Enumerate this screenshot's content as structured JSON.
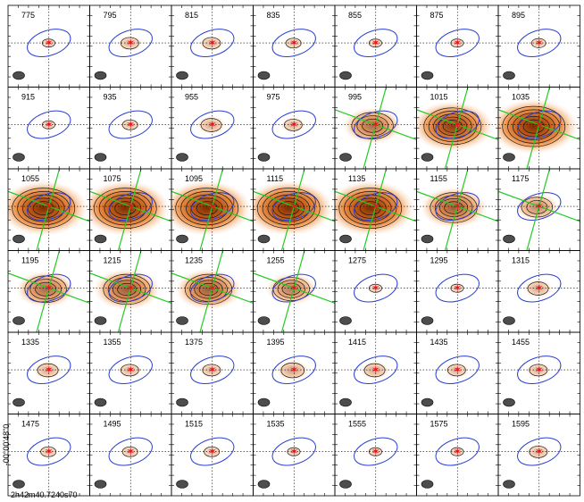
{
  "chart_data": {
    "type": "channel-map",
    "rows": 6,
    "cols": 7,
    "velocities": [
      "775",
      "795",
      "815",
      "835",
      "855",
      "875",
      "895",
      "915",
      "935",
      "955",
      "975",
      "995",
      "1015",
      "1035",
      "1055",
      "1075",
      "1095",
      "1115",
      "1135",
      "1155",
      "1175",
      "1195",
      "1215",
      "1235",
      "1255",
      "1275",
      "1295",
      "1315",
      "1335",
      "1355",
      "1375",
      "1395",
      "1415",
      "1435",
      "1455",
      "1475",
      "1495",
      "1515",
      "1535",
      "1555",
      "1575",
      "1595"
    ],
    "emission_strength": [
      0.05,
      0.15,
      0.15,
      0.1,
      0.05,
      0.05,
      0.08,
      0.05,
      0.1,
      0.2,
      0.15,
      0.6,
      0.9,
      1.0,
      1.0,
      1.0,
      1.0,
      1.0,
      1.0,
      0.7,
      0.4,
      0.6,
      0.7,
      0.7,
      0.5,
      0.05,
      0.05,
      0.2,
      0.2,
      0.15,
      0.15,
      0.25,
      0.2,
      0.15,
      0.15,
      0.1,
      0.1,
      0.1,
      0.05,
      0.05,
      0.05,
      0.15
    ],
    "kinematic_axes_panels": [
      "995",
      "1015",
      "1035",
      "1055",
      "1075",
      "1095",
      "1115",
      "1135",
      "1155",
      "1175",
      "1195",
      "1215",
      "1235",
      "1255"
    ],
    "y_tick_label": "-00°00'48\"0",
    "x_tick_label": "2h42m40.7240s70",
    "colors": {
      "ellipse": "#2a3fd1",
      "cross": "#e8141c",
      "kinematic_axis": "#22cc22",
      "contour": "#1a1a1a",
      "fill_low": "#fde3cc",
      "fill_mid": "#f09a55",
      "fill_high": "#7a2e06",
      "beam": "#4d4d4d"
    }
  }
}
